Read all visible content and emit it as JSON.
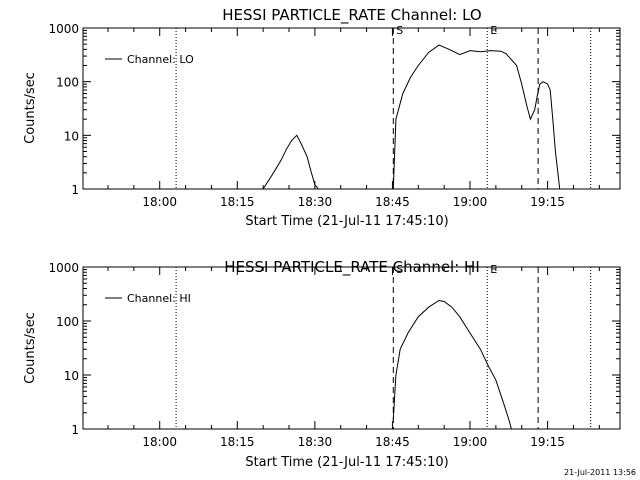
{
  "footer": {
    "timestamp": "21-Jul-2011 13:56"
  },
  "chart_data": [
    {
      "type": "line",
      "title": "HESSI PARTICLE_RATE Channel: LO",
      "xlabel": "Start Time (21-Jul-11 17:45:10)",
      "ylabel": "Counts/sec",
      "yscale": "log",
      "ylim": [
        1,
        1000
      ],
      "xlim": [
        "17:45:10",
        "19:29:00"
      ],
      "xticks": [
        "18:00",
        "18:15",
        "18:30",
        "18:45",
        "19:00",
        "19:15"
      ],
      "yticks": [
        "1",
        "10",
        "100",
        "1000"
      ],
      "legend": {
        "position": "top-left",
        "entries": [
          "Channel: LO"
        ]
      },
      "markers": [
        {
          "label": "S",
          "time": "18:45:10",
          "style": "dashed"
        },
        {
          "label": "E",
          "time": "19:03:20",
          "style": "dotted"
        }
      ],
      "dashed_lines": [
        "18:45:10",
        "19:13:10"
      ],
      "dotted_lines": [
        "18:03:10",
        "19:03:20",
        "19:23:20"
      ],
      "series": [
        {
          "name": "Channel: LO",
          "segments": [
            {
              "x": [
                "18:20:00",
                "18:22:00",
                "18:23:30",
                "18:24:30",
                "18:25:30",
                "18:26:30",
                "18:27:20",
                "18:28:30",
                "18:29:20",
                "18:30:00",
                "18:30:40"
              ],
              "y": [
                1,
                2,
                3.5,
                5.5,
                8,
                10,
                7,
                4,
                2,
                1.2,
                1
              ]
            },
            {
              "x": [
                "18:45:10",
                "18:45:40",
                "18:47:00",
                "18:48:30",
                "18:50:00",
                "18:52:00",
                "18:54:00",
                "18:56:00",
                "18:58:00",
                "19:00:00",
                "19:02:00",
                "19:04:00",
                "19:06:00",
                "19:07:00",
                "19:09:00",
                "19:10:00",
                "19:11:00",
                "19:11:40",
                "19:12:30",
                "19:13:00",
                "19:13:30",
                "19:14:10",
                "19:15:00",
                "19:15:30",
                "19:16:00",
                "19:16:30",
                "19:17:00",
                "19:17:20"
              ],
              "y": [
                1,
                20,
                60,
                120,
                200,
                350,
                480,
                400,
                320,
                380,
                360,
                380,
                370,
                330,
                200,
                90,
                35,
                20,
                30,
                55,
                90,
                100,
                90,
                70,
                20,
                5,
                2,
                1
              ]
            }
          ]
        }
      ]
    },
    {
      "type": "line",
      "title": "HESSI PARTICLE_RATE Channel: HI",
      "xlabel": "Start Time (21-Jul-11 17:45:10)",
      "ylabel": "Counts/sec",
      "yscale": "log",
      "ylim": [
        1,
        1000
      ],
      "xlim": [
        "17:45:10",
        "19:29:00"
      ],
      "xticks": [
        "18:00",
        "18:15",
        "18:30",
        "18:45",
        "19:00",
        "19:15"
      ],
      "yticks": [
        "1",
        "10",
        "100",
        "1000"
      ],
      "legend": {
        "position": "top-left",
        "entries": [
          "Channel: HI"
        ]
      },
      "markers": [
        {
          "label": "S",
          "time": "18:45:10",
          "style": "dashed"
        },
        {
          "label": "E",
          "time": "19:03:20",
          "style": "dotted"
        }
      ],
      "dashed_lines": [
        "18:45:10",
        "19:13:10"
      ],
      "dotted_lines": [
        "18:03:10",
        "19:03:20",
        "19:23:20"
      ],
      "series": [
        {
          "name": "Channel: HI",
          "segments": [
            {
              "x": [
                "18:45:10",
                "18:45:40",
                "18:46:30",
                "18:48:00",
                "18:50:00",
                "18:52:00",
                "18:54:00",
                "18:55:00",
                "18:56:30",
                "18:58:00",
                "19:00:00",
                "19:02:00",
                "19:03:30",
                "19:05:00",
                "19:06:30",
                "19:07:30",
                "19:08:00"
              ],
              "y": [
                1.5,
                10,
                30,
                60,
                120,
                180,
                240,
                230,
                180,
                120,
                60,
                30,
                15,
                8,
                3,
                1.5,
                1
              ]
            }
          ]
        }
      ]
    }
  ]
}
